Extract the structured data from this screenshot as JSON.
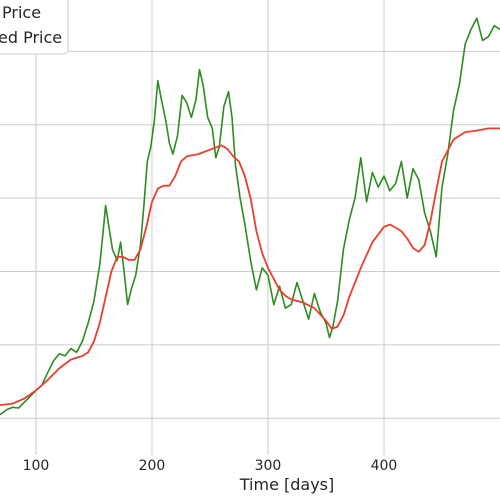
{
  "chart_data": {
    "type": "line",
    "xlabel": "Time [days]",
    "ylabel": "",
    "xlim": [
      69,
      500
    ],
    "ylim": [
      -0.5,
      5.7
    ],
    "grid": true,
    "legend_placement": "top-left",
    "x_ticks": [
      100,
      200,
      300,
      400
    ],
    "y_grid": [
      0,
      1,
      2,
      3,
      4,
      5
    ],
    "series": [
      {
        "name": "Price",
        "legend_label": "Price",
        "color": "#2e8b22",
        "points": [
          [
            69,
            0.05
          ],
          [
            75,
            0.12
          ],
          [
            80,
            0.15
          ],
          [
            85,
            0.14
          ],
          [
            90,
            0.22
          ],
          [
            95,
            0.3
          ],
          [
            100,
            0.38
          ],
          [
            105,
            0.45
          ],
          [
            110,
            0.62
          ],
          [
            115,
            0.78
          ],
          [
            120,
            0.88
          ],
          [
            125,
            0.85
          ],
          [
            130,
            0.95
          ],
          [
            135,
            0.9
          ],
          [
            140,
            1.05
          ],
          [
            145,
            1.3
          ],
          [
            150,
            1.6
          ],
          [
            155,
            2.1
          ],
          [
            158,
            2.55
          ],
          [
            160,
            2.9
          ],
          [
            163,
            2.6
          ],
          [
            166,
            2.3
          ],
          [
            170,
            2.15
          ],
          [
            173,
            2.4
          ],
          [
            176,
            2.0
          ],
          [
            179,
            1.55
          ],
          [
            182,
            1.75
          ],
          [
            186,
            1.95
          ],
          [
            190,
            2.35
          ],
          [
            193,
            2.9
          ],
          [
            196,
            3.5
          ],
          [
            199,
            3.7
          ],
          [
            202,
            4.05
          ],
          [
            205,
            4.6
          ],
          [
            208,
            4.35
          ],
          [
            212,
            4.05
          ],
          [
            215,
            3.75
          ],
          [
            218,
            3.6
          ],
          [
            222,
            3.85
          ],
          [
            226,
            4.4
          ],
          [
            230,
            4.3
          ],
          [
            234,
            4.1
          ],
          [
            238,
            4.35
          ],
          [
            241,
            4.75
          ],
          [
            244,
            4.55
          ],
          [
            248,
            4.1
          ],
          [
            252,
            3.95
          ],
          [
            255,
            3.55
          ],
          [
            258,
            3.7
          ],
          [
            262,
            4.25
          ],
          [
            266,
            4.45
          ],
          [
            269,
            4.1
          ],
          [
            272,
            3.45
          ],
          [
            276,
            3.0
          ],
          [
            280,
            2.65
          ],
          [
            285,
            2.15
          ],
          [
            290,
            1.75
          ],
          [
            295,
            2.05
          ],
          [
            300,
            1.95
          ],
          [
            305,
            1.55
          ],
          [
            310,
            1.8
          ],
          [
            315,
            1.5
          ],
          [
            320,
            1.55
          ],
          [
            325,
            1.85
          ],
          [
            330,
            1.6
          ],
          [
            335,
            1.35
          ],
          [
            340,
            1.7
          ],
          [
            345,
            1.45
          ],
          [
            350,
            1.3
          ],
          [
            353,
            1.1
          ],
          [
            356,
            1.25
          ],
          [
            360,
            1.6
          ],
          [
            365,
            2.3
          ],
          [
            370,
            2.7
          ],
          [
            375,
            3.0
          ],
          [
            380,
            3.55
          ],
          [
            385,
            2.95
          ],
          [
            390,
            3.35
          ],
          [
            395,
            3.15
          ],
          [
            400,
            3.3
          ],
          [
            405,
            3.1
          ],
          [
            410,
            3.2
          ],
          [
            415,
            3.5
          ],
          [
            420,
            3.0
          ],
          [
            425,
            3.4
          ],
          [
            430,
            3.25
          ],
          [
            435,
            2.8
          ],
          [
            440,
            2.55
          ],
          [
            445,
            2.2
          ],
          [
            450,
            3.15
          ],
          [
            455,
            3.6
          ],
          [
            460,
            4.2
          ],
          [
            465,
            4.55
          ],
          [
            470,
            5.1
          ],
          [
            475,
            5.3
          ],
          [
            480,
            5.45
          ],
          [
            485,
            5.15
          ],
          [
            490,
            5.2
          ],
          [
            495,
            5.35
          ],
          [
            500,
            5.3
          ]
        ]
      },
      {
        "name": "Predicted Price",
        "legend_label": "ed Price",
        "color": "#e8402c",
        "points": [
          [
            69,
            0.18
          ],
          [
            80,
            0.2
          ],
          [
            90,
            0.27
          ],
          [
            100,
            0.38
          ],
          [
            110,
            0.52
          ],
          [
            120,
            0.68
          ],
          [
            130,
            0.8
          ],
          [
            140,
            0.85
          ],
          [
            145,
            0.9
          ],
          [
            150,
            1.05
          ],
          [
            155,
            1.3
          ],
          [
            160,
            1.65
          ],
          [
            165,
            2.0
          ],
          [
            170,
            2.2
          ],
          [
            175,
            2.2
          ],
          [
            180,
            2.16
          ],
          [
            185,
            2.16
          ],
          [
            190,
            2.3
          ],
          [
            195,
            2.6
          ],
          [
            200,
            2.95
          ],
          [
            205,
            3.13
          ],
          [
            210,
            3.17
          ],
          [
            215,
            3.17
          ],
          [
            220,
            3.3
          ],
          [
            225,
            3.5
          ],
          [
            230,
            3.57
          ],
          [
            240,
            3.6
          ],
          [
            250,
            3.66
          ],
          [
            260,
            3.72
          ],
          [
            265,
            3.67
          ],
          [
            270,
            3.57
          ],
          [
            275,
            3.5
          ],
          [
            280,
            3.3
          ],
          [
            285,
            3.0
          ],
          [
            290,
            2.55
          ],
          [
            295,
            2.25
          ],
          [
            300,
            2.05
          ],
          [
            305,
            1.9
          ],
          [
            310,
            1.75
          ],
          [
            315,
            1.67
          ],
          [
            320,
            1.62
          ],
          [
            330,
            1.58
          ],
          [
            340,
            1.5
          ],
          [
            350,
            1.33
          ],
          [
            355,
            1.22
          ],
          [
            360,
            1.25
          ],
          [
            365,
            1.4
          ],
          [
            370,
            1.65
          ],
          [
            380,
            2.05
          ],
          [
            390,
            2.4
          ],
          [
            400,
            2.61
          ],
          [
            405,
            2.64
          ],
          [
            410,
            2.6
          ],
          [
            415,
            2.55
          ],
          [
            420,
            2.45
          ],
          [
            425,
            2.32
          ],
          [
            430,
            2.27
          ],
          [
            435,
            2.36
          ],
          [
            440,
            2.68
          ],
          [
            445,
            3.1
          ],
          [
            450,
            3.5
          ],
          [
            460,
            3.8
          ],
          [
            470,
            3.9
          ],
          [
            480,
            3.92
          ],
          [
            490,
            3.95
          ],
          [
            500,
            3.95
          ]
        ]
      }
    ]
  }
}
